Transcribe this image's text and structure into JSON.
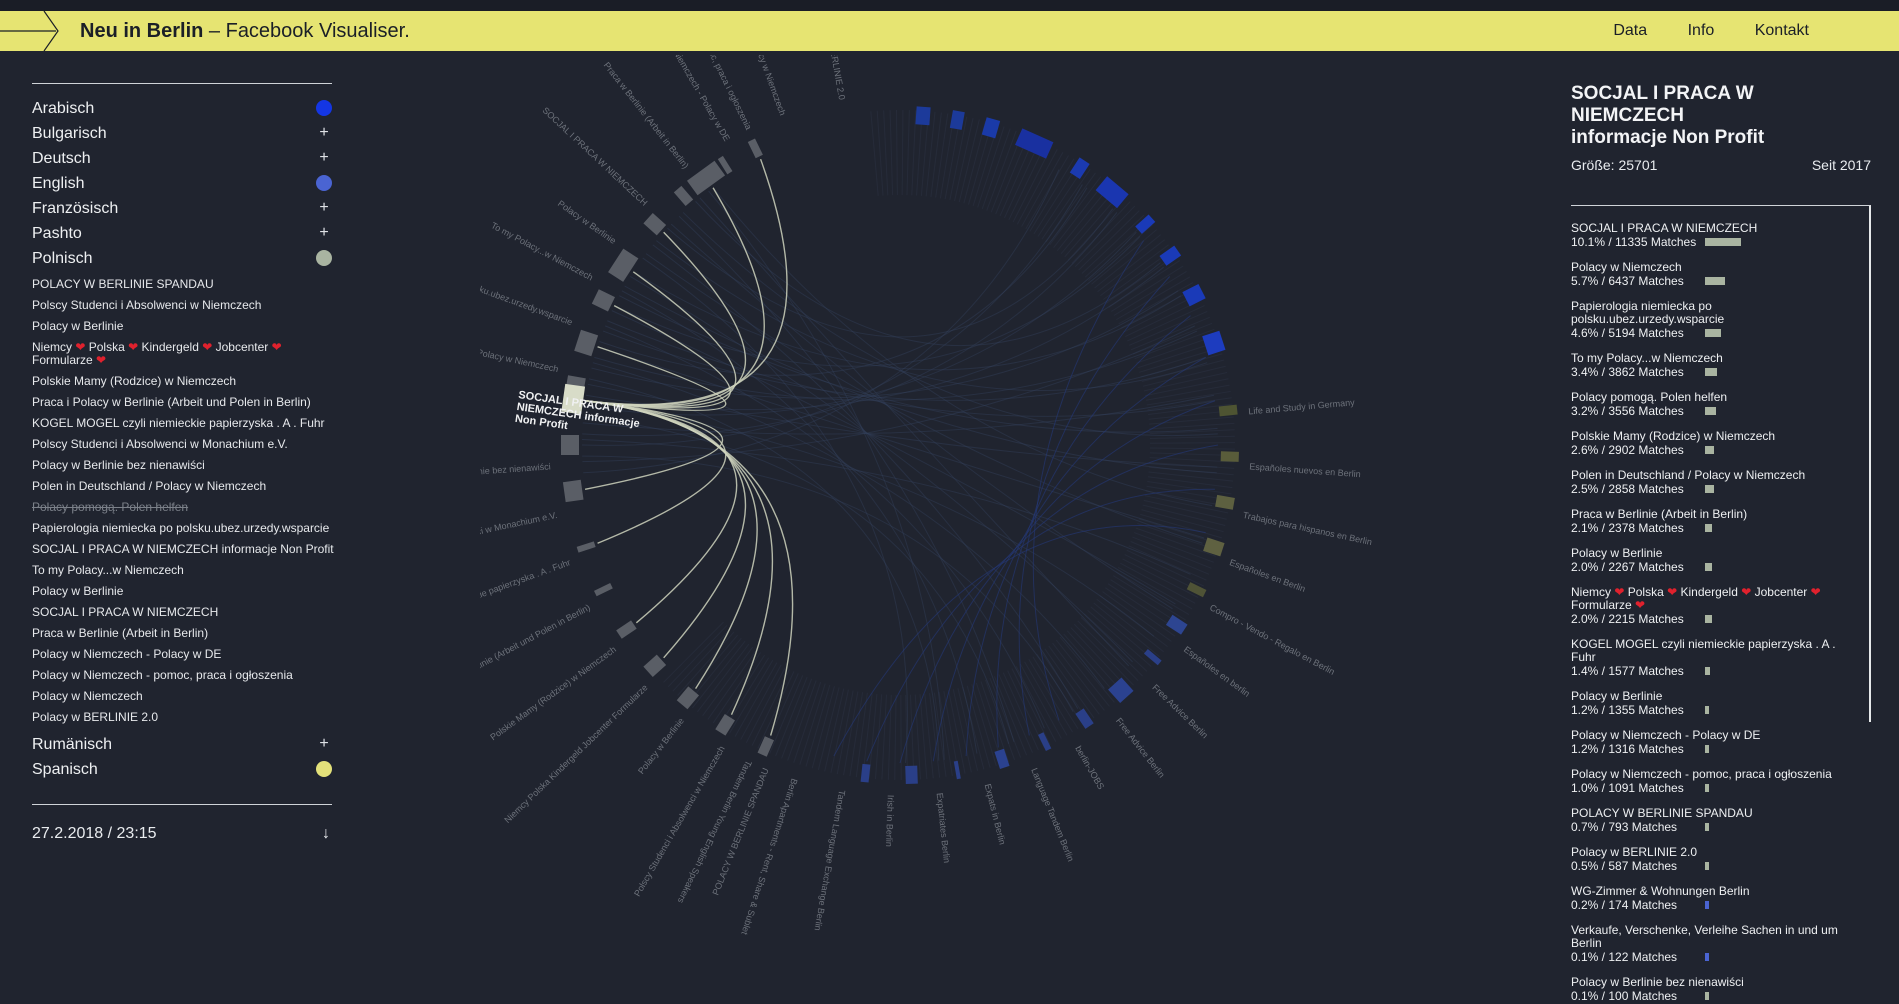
{
  "header": {
    "brand_bold": "Neu in Berlin",
    "brand_rest": " – Facebook Visualiser.",
    "nav": [
      "Data",
      "Info",
      "Kontakt"
    ]
  },
  "colors": {
    "header_bg": "#e6e472",
    "bg": "#20242f",
    "arabic": "#1436e4",
    "english": "#4a64d2",
    "polish": "#a9b4a1",
    "spanish": "#e3e17a",
    "highlight": "#d8dcc8"
  },
  "sidebar": {
    "languages_top": [
      {
        "name": "Arabisch",
        "marker": "dot",
        "color": "#1436e4"
      },
      {
        "name": "Bulgarisch",
        "marker": "+"
      },
      {
        "name": "Deutsch",
        "marker": "+"
      },
      {
        "name": "English",
        "marker": "dot",
        "color": "#4a64d2"
      },
      {
        "name": "Französisch",
        "marker": "+"
      },
      {
        "name": "Pashto",
        "marker": "+"
      },
      {
        "name": "Polnisch",
        "marker": "dot",
        "color": "#a9b4a1"
      }
    ],
    "polish_groups": [
      "POLACY W BERLINIE SPANDAU",
      "Polscy Studenci i Absolwenci w Niemczech",
      "Polacy w Berlinie",
      "Niemcy ❤ Polska ❤ Kindergeld ❤ Jobcenter ❤ Formularze ❤",
      "Polskie Mamy (Rodzice) w Niemczech",
      "Praca i Polacy w Berlinie (Arbeit und Polen in Berlin)",
      "KOGEL MOGEL czyli niemieckie papierzyska . A . Fuhr",
      "Polscy Studenci i Absolwenci w Monachium e.V.",
      "Polacy w Berlinie bez nienawiści",
      "Polen in Deutschland / Polacy w Niemczech",
      "Polacy pomogą. Polen helfen",
      "Papierologia niemiecka po polsku.ubez.urzedy.wsparcie",
      "SOCJAL I PRACA W NIEMCZECH informacje Non Profit",
      "To my Polacy...w Niemczech",
      "Polacy w Berlinie",
      "SOCJAL I PRACA W NIEMCZECH",
      "Praca w Berlinie (Arbeit in Berlin)",
      "Polacy w Niemczech - Polacy w DE",
      "Polacy w Niemczech - pomoc, praca i ogłoszenia",
      "Polacy w Niemczech",
      "Polacy w BERLINIE 2.0"
    ],
    "languages_bottom": [
      {
        "name": "Rumänisch",
        "marker": "+"
      },
      {
        "name": "Spanisch",
        "marker": "dot",
        "color": "#e3e17a"
      }
    ],
    "date": "27.2.2018 / 23:15"
  },
  "selected": {
    "title_line1": "SOCJAL I PRACA W NIEMCZECH",
    "title_line2": "informacje Non Profit",
    "size_label": "Größe: 25701",
    "since_label": "Seit 2017",
    "matches": [
      {
        "name": "SOCJAL I PRACA W NIEMCZECH",
        "stat": "10.1% / 11335 Matches",
        "pct": 10.1,
        "color": "#a9b4a1"
      },
      {
        "name": "Polacy w Niemczech",
        "stat": "5.7% / 6437 Matches",
        "pct": 5.7,
        "color": "#a9b4a1"
      },
      {
        "name": "Papierologia niemiecka po polsku.ubez.urzedy.wsparcie",
        "stat": "4.6% / 5194 Matches",
        "pct": 4.6,
        "color": "#a9b4a1"
      },
      {
        "name": "To my Polacy...w Niemczech",
        "stat": "3.4% / 3862 Matches",
        "pct": 3.4,
        "color": "#a9b4a1"
      },
      {
        "name": "Polacy pomogą. Polen helfen",
        "stat": "3.2% / 3556 Matches",
        "pct": 3.2,
        "color": "#a9b4a1"
      },
      {
        "name": "Polskie Mamy (Rodzice) w Niemczech",
        "stat": "2.6% / 2902 Matches",
        "pct": 2.6,
        "color": "#a9b4a1"
      },
      {
        "name": "Polen in Deutschland / Polacy w Niemczech",
        "stat": "2.5% / 2858 Matches",
        "pct": 2.5,
        "color": "#a9b4a1"
      },
      {
        "name": "Praca w Berlinie (Arbeit in Berlin)",
        "stat": "2.1% / 2378 Matches",
        "pct": 2.1,
        "color": "#a9b4a1"
      },
      {
        "name": "Polacy w Berlinie",
        "stat": "2.0% / 2267 Matches",
        "pct": 2.0,
        "color": "#a9b4a1"
      },
      {
        "name": "Niemcy ❤ Polska ❤ Kindergeld ❤ Jobcenter ❤ Formularze ❤",
        "stat": "2.0% / 2215 Matches",
        "pct": 2.0,
        "color": "#a9b4a1"
      },
      {
        "name": "KOGEL MOGEL czyli niemieckie papierzyska . A . Fuhr",
        "stat": "1.4% / 1577 Matches",
        "pct": 1.4,
        "color": "#a9b4a1"
      },
      {
        "name": "Polacy w Berlinie",
        "stat": "1.2% / 1355 Matches",
        "pct": 1.2,
        "color": "#a9b4a1"
      },
      {
        "name": "Polacy w Niemczech - Polacy w DE",
        "stat": "1.2% / 1316 Matches",
        "pct": 1.2,
        "color": "#a9b4a1"
      },
      {
        "name": "Polacy w Niemczech - pomoc, praca i ogłoszenia",
        "stat": "1.0% / 1091 Matches",
        "pct": 1.0,
        "color": "#a9b4a1"
      },
      {
        "name": "POLACY W BERLINIE SPANDAU",
        "stat": "0.7% / 793 Matches",
        "pct": 0.7,
        "color": "#a9b4a1"
      },
      {
        "name": "Polacy w BERLINIE 2.0",
        "stat": "0.5% / 587 Matches",
        "pct": 0.5,
        "color": "#a9b4a1"
      },
      {
        "name": "WG-Zimmer & Wohnungen Berlin",
        "stat": "0.2% / 174 Matches",
        "pct": 0.2,
        "color": "#4a64d2"
      },
      {
        "name": "Verkaufe, Verschenke, Verleihe Sachen in und um Berlin",
        "stat": "0.1% / 122 Matches",
        "pct": 0.1,
        "color": "#4a64d2"
      },
      {
        "name": "Polacy w Berlinie bez nienawiści",
        "stat": "0.1% / 100 Matches",
        "pct": 0.1,
        "color": "#a9b4a1"
      }
    ]
  },
  "chord": {
    "selected_label_lines": [
      "SOCJAL I PRACA W",
      "NIEMCZECH informacje",
      "Non Profit"
    ],
    "polish_labels": [
      "Polacy w BERLINIE 2.0",
      "Polacy w Niemczech",
      "Polacy w Niemczech - pomoc, praca i ogłoszenia",
      "Polacy w Niemczech - Polacy w DE",
      "Praca w Berlinie (Arbeit in Berlin)",
      "SOCJAL I PRACA W NIEMCZECH",
      "Polacy w Berlinie",
      "To my Polacy...w Niemczech",
      "Papierologia niemiecka po polsku.ubez.urzedy.wsparcie",
      "Polen in Deutschland / Polacy w Niemczech",
      "Polacy w Berlinie bez nienawiści",
      "Polscy Studenci i Absolwenci w Monachium e.V.",
      "KOGEL MOGEL czyli niemieckie papierzyska . A . Fuhr",
      "Praca i Polacy w Berlinie (Arbeit und Polen in Berlin)",
      "Polskie Mamy (Rodzice) w Niemczech",
      "Niemcy Polska Kindergeld Jobcenter Formularze",
      "Polacy w Berlinie",
      "Polscy Studenci i Absolwenci w Niemczech",
      "POLACY W BERLINIE SPANDAU"
    ],
    "english_labels": [
      "Life and Study in Germany",
      "Españoles nuevos en Berlin",
      "Trabajos para hispanos en Berlin",
      "Españoles en Berlin",
      "Compro - Vendo - Regalo en Berlin",
      "Españoles en berlin",
      "Free Advice Berlin",
      "Free Advice Berlin",
      "berlin-JOBS",
      "Language Tandem Berlin",
      "Expats in Berlin",
      "Expatriates Berlin",
      "Irish in Berlin",
      "Tandem Language Exchange Berlin",
      "Berlin Apartments - Rent, Share & Sublet",
      "Tandem Berlin Young English Speakers"
    ]
  }
}
